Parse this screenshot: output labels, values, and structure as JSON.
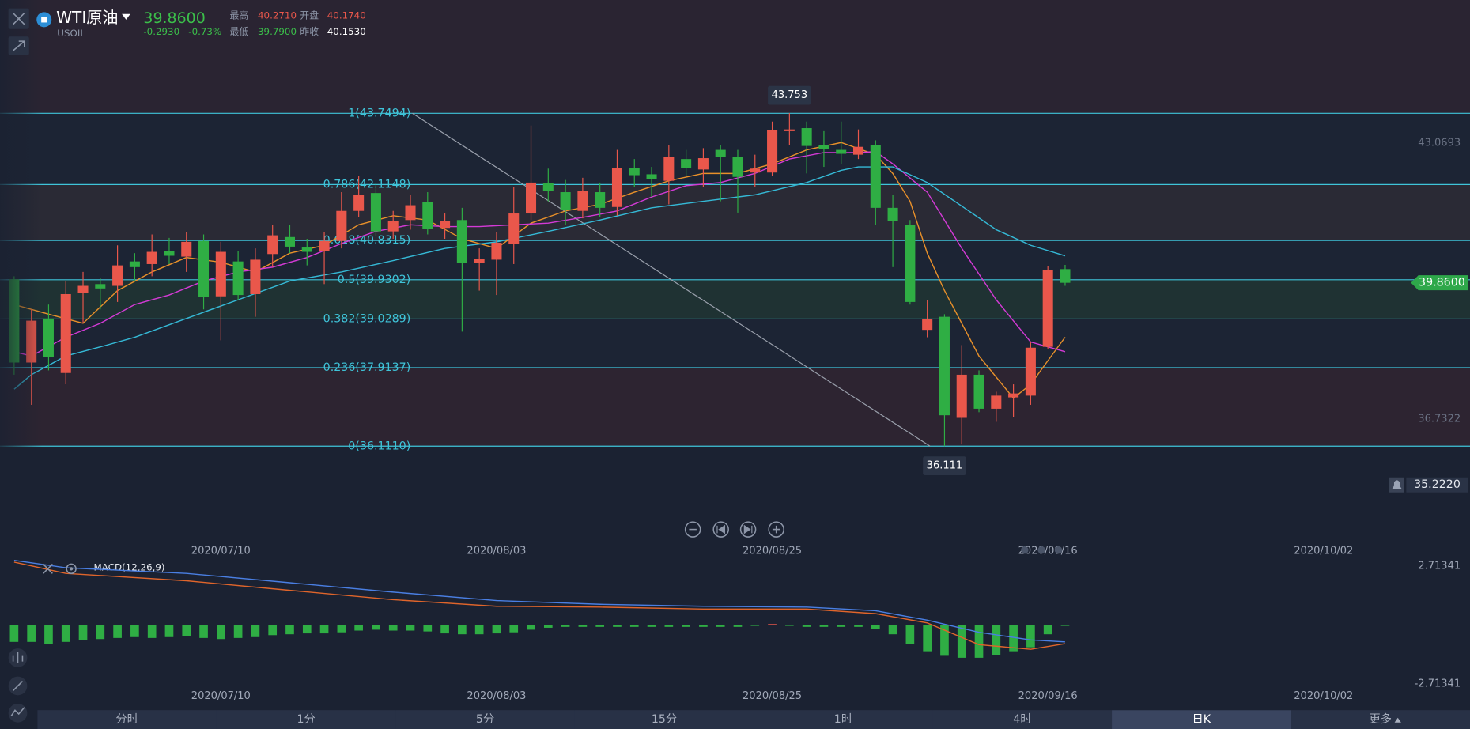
{
  "header": {
    "name": "WTI原油",
    "symbol": "USOIL",
    "price": "39.8600",
    "change": "-0.2930",
    "change_pct": "-0.73%",
    "high_label": "最高",
    "high": "40.2710",
    "open_label": "开盘",
    "open": "40.1740",
    "low_label": "最低",
    "low": "39.7900",
    "prev_close_label": "昨收",
    "prev_close": "40.1530"
  },
  "chart_data": [
    {
      "type": "candlestick",
      "up_color": "#e9574b",
      "down_color": "#2fae44",
      "xlim": [
        -0.82,
        84.5
      ],
      "ylim": [
        34.63,
        46.35
      ],
      "yticks": [
        43.0693,
        36.7322
      ],
      "xticks": [
        {
          "value": 12,
          "label": "2020/07/10"
        },
        {
          "value": 28,
          "label": "2020/08/03"
        },
        {
          "value": 44,
          "label": "2020/08/25"
        },
        {
          "value": 60,
          "label": "2020/09/16"
        },
        {
          "value": 76,
          "label": "2020/10/02"
        }
      ],
      "ohlc": [
        [
          39.94,
          40.01,
          37.75,
          38.03
        ],
        [
          38.03,
          39.25,
          37.06,
          38.99
        ],
        [
          39.04,
          39.36,
          37.85,
          38.15
        ],
        [
          37.79,
          39.9,
          37.53,
          39.6
        ],
        [
          39.62,
          40.11,
          38.93,
          39.79
        ],
        [
          39.83,
          39.98,
          39.25,
          39.73
        ],
        [
          39.79,
          40.72,
          39.42,
          40.26
        ],
        [
          40.35,
          40.54,
          39.9,
          40.22
        ],
        [
          40.29,
          40.97,
          40.01,
          40.57
        ],
        [
          40.59,
          40.89,
          40.29,
          40.48
        ],
        [
          40.46,
          41.02,
          40.11,
          40.8
        ],
        [
          40.82,
          40.97,
          39.25,
          39.53
        ],
        [
          39.55,
          40.8,
          38.54,
          40.57
        ],
        [
          40.35,
          40.59,
          39.47,
          39.58
        ],
        [
          39.6,
          40.65,
          39.08,
          40.39
        ],
        [
          40.52,
          41.19,
          40.22,
          40.95
        ],
        [
          40.91,
          41.19,
          40.54,
          40.69
        ],
        [
          40.67,
          40.87,
          40.26,
          40.57
        ],
        [
          40.59,
          41.02,
          39.83,
          40.82
        ],
        [
          40.82,
          41.94,
          40.65,
          41.51
        ],
        [
          41.51,
          42.31,
          41.36,
          41.88
        ],
        [
          41.92,
          42.16,
          40.93,
          41.04
        ],
        [
          41.04,
          41.51,
          40.87,
          41.28
        ],
        [
          41.3,
          41.88,
          41.08,
          41.64
        ],
        [
          41.71,
          41.94,
          40.97,
          41.1
        ],
        [
          41.12,
          41.45,
          40.87,
          41.28
        ],
        [
          41.3,
          41.58,
          38.74,
          40.31
        ],
        [
          40.31,
          40.65,
          39.68,
          40.41
        ],
        [
          40.39,
          41.02,
          39.58,
          40.78
        ],
        [
          40.76,
          42.05,
          40.29,
          41.45
        ],
        [
          41.45,
          43.47,
          41.3,
          42.16
        ],
        [
          42.14,
          42.48,
          41.73,
          41.96
        ],
        [
          41.94,
          42.22,
          41.19,
          41.53
        ],
        [
          41.51,
          42.27,
          41.34,
          41.96
        ],
        [
          41.94,
          42.16,
          41.36,
          41.58
        ],
        [
          41.6,
          42.91,
          41.4,
          42.5
        ],
        [
          42.5,
          42.7,
          42.05,
          42.33
        ],
        [
          42.35,
          42.52,
          41.83,
          42.24
        ],
        [
          42.2,
          43.02,
          41.66,
          42.74
        ],
        [
          42.7,
          42.91,
          42.31,
          42.5
        ],
        [
          42.46,
          42.95,
          42.05,
          42.72
        ],
        [
          42.91,
          43.02,
          41.73,
          42.74
        ],
        [
          42.74,
          42.91,
          41.47,
          42.29
        ],
        [
          42.39,
          42.8,
          42.05,
          42.48
        ],
        [
          42.39,
          43.56,
          42.31,
          43.36
        ],
        [
          43.34,
          43.753,
          43.02,
          43.38
        ],
        [
          43.41,
          43.56,
          42.37,
          43.0
        ],
        [
          43.02,
          43.34,
          42.52,
          42.93
        ],
        [
          42.91,
          43.56,
          42.59,
          42.82
        ],
        [
          42.8,
          43.38,
          42.7,
          42.98
        ],
        [
          43.02,
          43.13,
          41.19,
          41.58
        ],
        [
          41.58,
          41.88,
          40.22,
          41.28
        ],
        [
          41.19,
          41.3,
          39.36,
          39.42
        ],
        [
          38.78,
          39.47,
          38.61,
          39.02
        ],
        [
          39.08,
          39.14,
          36.111,
          36.82
        ],
        [
          36.76,
          38.43,
          36.15,
          37.75
        ],
        [
          37.75,
          37.85,
          36.89,
          36.97
        ],
        [
          36.97,
          37.36,
          36.67,
          37.27
        ],
        [
          37.23,
          37.53,
          36.78,
          37.32
        ],
        [
          37.27,
          38.5,
          37.06,
          38.37
        ],
        [
          38.39,
          40.24,
          38.35,
          40.153
        ],
        [
          40.174,
          40.271,
          39.79,
          39.86
        ]
      ],
      "lines": [
        {
          "color": "#e8902a",
          "x": [
            0,
            2,
            4,
            6,
            8,
            10,
            12,
            14,
            16,
            18,
            20,
            22,
            24,
            26,
            28,
            30,
            32,
            34,
            36,
            38,
            40,
            42,
            44,
            46,
            48,
            50,
            51,
            52,
            53,
            54,
            56,
            58,
            59,
            60,
            61
          ],
          "values": [
            39.36,
            39.14,
            38.93,
            39.68,
            40.11,
            40.44,
            40.33,
            40.11,
            40.54,
            40.72,
            41.19,
            41.4,
            41.3,
            40.87,
            40.65,
            41.23,
            41.51,
            41.66,
            41.94,
            42.2,
            42.37,
            42.37,
            42.59,
            42.91,
            43.08,
            42.8,
            42.37,
            41.73,
            40.54,
            39.68,
            38.18,
            37.21,
            37.53,
            38.07,
            38.61
          ]
        },
        {
          "color": "#d43ad6",
          "x": [
            0,
            1,
            3,
            5,
            7,
            9,
            11,
            13,
            15,
            17,
            19,
            21,
            23,
            25,
            27,
            29,
            31,
            33,
            35,
            37,
            39,
            41,
            43,
            45,
            47,
            49,
            50,
            51,
            53,
            55,
            57,
            59,
            61
          ],
          "values": [
            38.28,
            38.18,
            38.61,
            38.93,
            39.36,
            39.58,
            39.9,
            40.11,
            40.22,
            40.44,
            40.76,
            41.04,
            41.19,
            41.15,
            41.15,
            41.19,
            41.23,
            41.36,
            41.51,
            41.83,
            42.09,
            42.16,
            42.37,
            42.7,
            42.85,
            42.85,
            42.87,
            42.59,
            41.94,
            40.65,
            39.47,
            38.5,
            38.28
          ]
        },
        {
          "color": "#35b9d6",
          "x": [
            0,
            1,
            3,
            5,
            7,
            10,
            13,
            16,
            19,
            22,
            25,
            28,
            31,
            34,
            37,
            40,
            43,
            46,
            48,
            49,
            51,
            53,
            55,
            57,
            59,
            61
          ],
          "values": [
            37.42,
            37.75,
            38.18,
            38.39,
            38.61,
            39.04,
            39.47,
            39.9,
            40.11,
            40.37,
            40.65,
            40.8,
            41.04,
            41.3,
            41.58,
            41.73,
            41.88,
            42.16,
            42.44,
            42.52,
            42.52,
            42.16,
            41.62,
            41.08,
            40.72,
            40.48
          ]
        }
      ],
      "fib_color": "#3fc4d9",
      "fibonacci": [
        {
          "label": "1(43.7494)",
          "price": 43.7494
        },
        {
          "label": "0.786(42.1148)",
          "price": 42.1148
        },
        {
          "label": "0.618(40.8315)",
          "price": 40.8315
        },
        {
          "label": "0.5(39.9302)",
          "price": 39.9302
        },
        {
          "label": "0.382(39.0289)",
          "price": 39.0289
        },
        {
          "label": "0.236(37.9137)",
          "price": 37.9137
        },
        {
          "label": "0(36.1110)",
          "price": 36.111
        }
      ],
      "high_marker": {
        "index": 45,
        "value": 43.753
      },
      "low_marker": {
        "index": 54,
        "value": 36.111
      },
      "last_price": {
        "value": 39.86,
        "label": "39.8600"
      },
      "alert": {
        "value": 35.222,
        "label": "35.2220"
      }
    },
    {
      "type": "macd",
      "title": "MACD(12,26,9)",
      "up_color": "#e9574b",
      "down_color": "#2fae44",
      "xlim": [
        -0.82,
        84.5
      ],
      "ylim": [
        -3.15,
        3.23
      ],
      "yticks": [
        2.71341,
        -2.71341
      ],
      "histogram": [
        -0.78,
        -0.78,
        -0.86,
        -0.78,
        -0.69,
        -0.65,
        -0.6,
        -0.56,
        -0.6,
        -0.56,
        -0.52,
        -0.6,
        -0.65,
        -0.6,
        -0.56,
        -0.47,
        -0.43,
        -0.39,
        -0.39,
        -0.34,
        -0.26,
        -0.22,
        -0.26,
        -0.26,
        -0.3,
        -0.39,
        -0.43,
        -0.43,
        -0.39,
        -0.34,
        -0.22,
        -0.13,
        -0.09,
        -0.09,
        -0.09,
        -0.09,
        -0.09,
        -0.09,
        -0.09,
        -0.09,
        -0.09,
        -0.09,
        -0.09,
        -0.04,
        0.04,
        -0.04,
        -0.09,
        -0.09,
        -0.09,
        -0.09,
        -0.17,
        -0.43,
        -0.86,
        -1.21,
        -1.42,
        -1.51,
        -1.51,
        -1.38,
        -1.21,
        -1.03,
        -0.43,
        -0.04
      ],
      "lines": [
        {
          "color": "#4a7fe3",
          "x": [
            0,
            3,
            10,
            16,
            22,
            28,
            34,
            40,
            46,
            50,
            53,
            56,
            59,
            61
          ],
          "values": [
            2.97,
            2.63,
            2.37,
            1.94,
            1.51,
            1.12,
            0.95,
            0.86,
            0.82,
            0.65,
            0.22,
            -0.34,
            -0.69,
            -0.78
          ]
        },
        {
          "color": "#e0652b",
          "x": [
            0,
            3,
            10,
            16,
            22,
            28,
            34,
            40,
            46,
            50,
            53,
            56,
            59,
            61
          ],
          "values": [
            2.89,
            2.37,
            2.03,
            1.59,
            1.16,
            0.86,
            0.82,
            0.73,
            0.73,
            0.52,
            0.09,
            -0.91,
            -1.12,
            -0.86
          ]
        }
      ]
    }
  ],
  "timeframes": [
    {
      "label": "分时",
      "selected": false
    },
    {
      "label": "1分",
      "selected": false
    },
    {
      "label": "5分",
      "selected": false
    },
    {
      "label": "15分",
      "selected": false
    },
    {
      "label": "1时",
      "selected": false
    },
    {
      "label": "4时",
      "selected": false
    },
    {
      "label": "日K",
      "selected": true
    },
    {
      "label": "更多",
      "selected": false
    }
  ]
}
